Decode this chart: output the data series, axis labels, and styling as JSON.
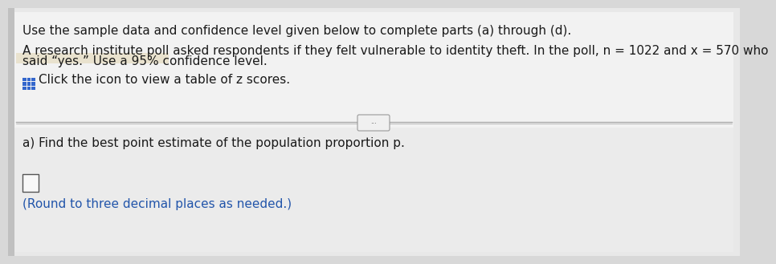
{
  "bg_color": "#d8d8d8",
  "panel_color": "#ffffff",
  "text_color": "#1a1a1a",
  "blue_text_color": "#2255aa",
  "line1": "Use the sample data and confidence level given below to complete parts (a) through (d).",
  "line2a": "A research institute poll asked respondents if they felt vulnerable to identity theft. In the poll, n = 1022 and x = 570 who",
  "line2b": "said “yes.” Use a 95% confidence level.",
  "line3": "Click the icon to view a table of z scores.",
  "line4": "a) Find the best point estimate of the population proportion p.",
  "line5": "(Round to three decimal places as needed.)",
  "icon_label": "...",
  "font_size_main": 11.0
}
